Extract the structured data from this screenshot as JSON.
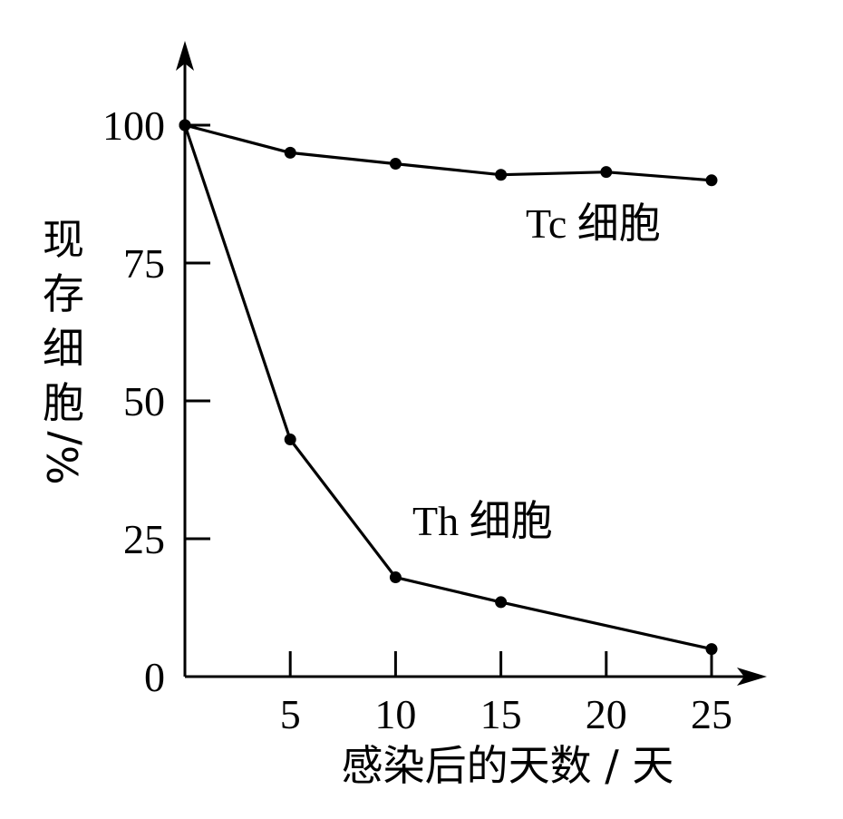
{
  "chart_data": {
    "type": "line",
    "xlabel": "感染后的天数 / 天",
    "ylabel": "现存细胞 %/",
    "ylim": [
      0,
      100
    ],
    "xlim": [
      0,
      25
    ],
    "x_ticks": [
      "5",
      "10",
      "15",
      "20",
      "25"
    ],
    "y_ticks": [
      "0",
      "25",
      "50",
      "75",
      "100"
    ],
    "series": [
      {
        "name": "Tc 细胞",
        "points": [
          [
            0,
            100
          ],
          [
            5,
            95
          ],
          [
            10,
            93
          ],
          [
            15,
            91
          ],
          [
            20,
            91.5
          ],
          [
            25,
            90
          ]
        ]
      },
      {
        "name": "Th 细胞",
        "points": [
          [
            0,
            100
          ],
          [
            5,
            43
          ],
          [
            10,
            18
          ],
          [
            15,
            13.5
          ],
          [
            25,
            5
          ]
        ]
      }
    ],
    "grid": false,
    "legend": "inline labels"
  }
}
